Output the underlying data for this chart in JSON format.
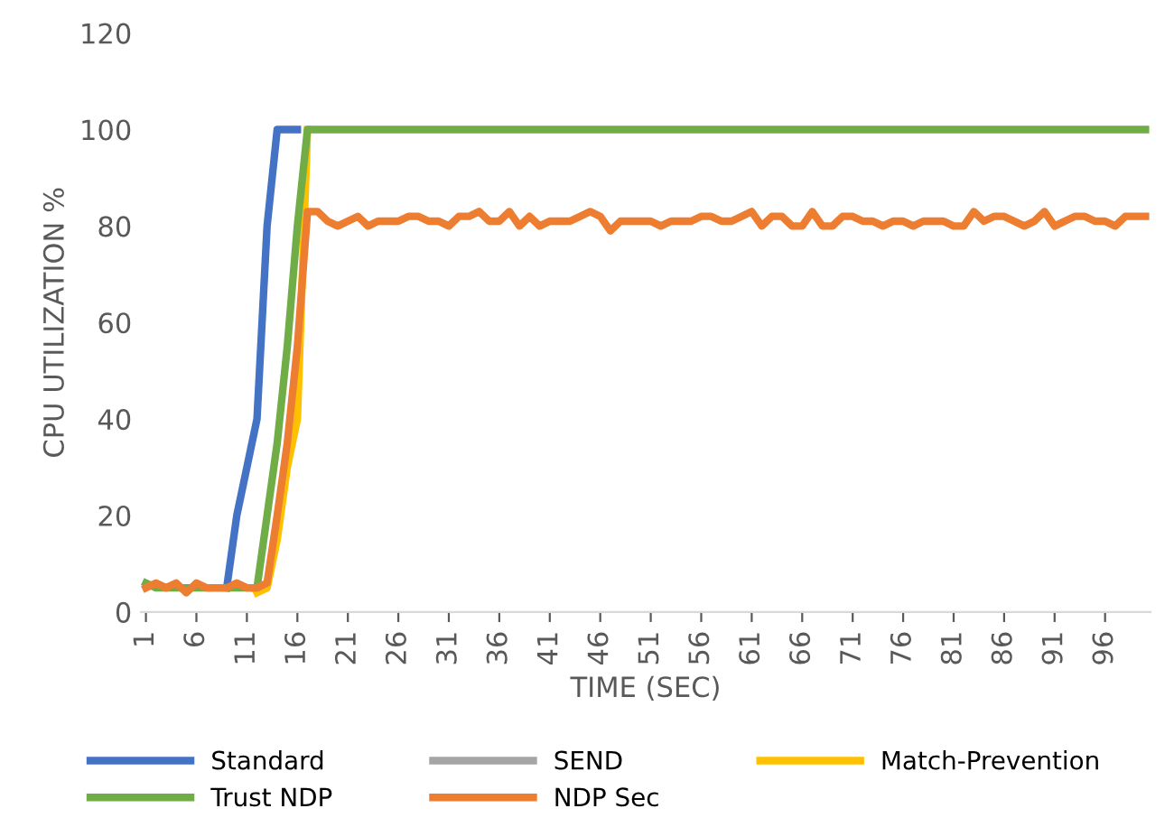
{
  "chart_data": {
    "type": "line",
    "xlabel": "TIME (SEC)",
    "ylabel": "CPU UTILIZATION %",
    "categories": [
      "1",
      null,
      null,
      null,
      null,
      "6",
      null,
      null,
      null,
      null,
      "11",
      null,
      null,
      null,
      null,
      "16",
      null,
      null,
      null,
      null,
      "21",
      null,
      null,
      null,
      null,
      "26",
      null,
      null,
      null,
      null,
      "31",
      null,
      null,
      null,
      null,
      "36",
      null,
      null,
      null,
      null,
      "41",
      null,
      null,
      null,
      null,
      "46",
      null,
      null,
      null,
      null,
      "51",
      null,
      null,
      null,
      null,
      "56",
      null,
      null,
      null,
      null,
      "61",
      null,
      null,
      null,
      null,
      "66",
      null,
      null,
      null,
      null,
      "71",
      null,
      null,
      null,
      null,
      "76",
      null,
      null,
      null,
      null,
      "81",
      null,
      null,
      null,
      null,
      "86",
      null,
      null,
      null,
      null,
      "91",
      null,
      null,
      null,
      null,
      "96",
      null,
      null,
      null,
      null
    ],
    "series": [
      {
        "name": "Standard",
        "color": "#4472c4",
        "values": [
          null,
          null,
          null,
          null,
          null,
          null,
          null,
          null,
          5,
          20,
          30,
          40,
          80,
          100,
          100,
          100,
          null,
          null,
          null,
          null,
          null,
          null,
          null,
          null,
          null,
          null,
          null,
          null,
          null,
          null,
          null,
          null,
          null,
          null,
          null,
          null,
          null,
          null,
          null,
          null,
          null,
          null,
          null,
          null,
          null,
          null,
          null,
          null,
          null,
          null,
          null,
          null,
          null,
          null,
          null,
          null,
          null,
          null,
          null,
          null,
          null,
          null,
          null,
          null,
          null,
          null,
          null,
          null,
          null,
          null,
          null,
          null,
          null,
          null,
          null,
          null,
          null,
          null,
          null,
          null,
          null,
          null,
          null,
          null,
          null,
          null,
          null,
          null,
          null,
          null,
          null,
          null,
          null,
          null,
          null,
          null,
          null,
          null,
          null,
          null
        ]
      },
      {
        "name": "SEND",
        "color": "#a5a5a5",
        "values": [
          null,
          null,
          null,
          null,
          null,
          null,
          null,
          null,
          null,
          null,
          null,
          null,
          null,
          null,
          null,
          null,
          null,
          null,
          null,
          null,
          null,
          null,
          null,
          null,
          null,
          null,
          null,
          null,
          null,
          null,
          null,
          null,
          null,
          null,
          null,
          null,
          null,
          null,
          null,
          null,
          null,
          null,
          null,
          null,
          null,
          null,
          null,
          null,
          null,
          null,
          null,
          null,
          null,
          null,
          null,
          null,
          null,
          null,
          null,
          null,
          null,
          null,
          null,
          null,
          null,
          null,
          null,
          null,
          null,
          null,
          null,
          null,
          null,
          null,
          null,
          null,
          null,
          null,
          null,
          null,
          null,
          null,
          null,
          null,
          null,
          null,
          null,
          null,
          null,
          null,
          null,
          null,
          null,
          null,
          null,
          null,
          null,
          null,
          null,
          null
        ]
      },
      {
        "name": "Match-Prevention",
        "color": "#ffc000",
        "values": [
          null,
          null,
          null,
          null,
          null,
          null,
          null,
          null,
          null,
          null,
          null,
          4,
          5,
          15,
          30,
          40,
          100,
          null,
          null,
          null,
          null,
          null,
          null,
          null,
          null,
          null,
          null,
          null,
          null,
          null,
          null,
          null,
          null,
          null,
          null,
          null,
          null,
          null,
          null,
          null,
          null,
          null,
          null,
          null,
          null,
          null,
          null,
          null,
          null,
          null,
          null,
          null,
          null,
          null,
          null,
          null,
          null,
          null,
          null,
          null,
          null,
          null,
          null,
          null,
          null,
          null,
          null,
          null,
          null,
          null,
          null,
          null,
          null,
          null,
          null,
          null,
          null,
          null,
          null,
          null,
          null,
          null,
          null,
          null,
          null,
          null,
          null,
          null,
          null,
          null,
          null,
          null,
          null,
          null,
          null,
          null,
          null,
          null,
          null,
          null
        ]
      },
      {
        "name": "Trust NDP",
        "color": "#70ad47",
        "values": [
          6,
          5,
          5,
          5,
          5,
          5,
          5,
          5,
          5,
          5,
          5,
          5,
          20,
          35,
          55,
          80,
          100,
          100,
          100,
          100,
          100,
          100,
          100,
          100,
          100,
          100,
          100,
          100,
          100,
          100,
          100,
          100,
          100,
          100,
          100,
          100,
          100,
          100,
          100,
          100,
          100,
          100,
          100,
          100,
          100,
          100,
          100,
          100,
          100,
          100,
          100,
          100,
          100,
          100,
          100,
          100,
          100,
          100,
          100,
          100,
          100,
          100,
          100,
          100,
          100,
          100,
          100,
          100,
          100,
          100,
          100,
          100,
          100,
          100,
          100,
          100,
          100,
          100,
          100,
          100,
          100,
          100,
          100,
          100,
          100,
          100,
          100,
          100,
          100,
          100,
          100,
          100,
          100,
          100,
          100,
          100,
          100,
          100,
          100,
          100
        ]
      },
      {
        "name": "NDP Sec",
        "color": "#ed7d31",
        "values": [
          5,
          6,
          5,
          6,
          4,
          6,
          5,
          5,
          5,
          6,
          5,
          5,
          6,
          20,
          35,
          55,
          83,
          83,
          81,
          80,
          81,
          82,
          80,
          81,
          81,
          81,
          82,
          82,
          81,
          81,
          80,
          82,
          82,
          83,
          81,
          81,
          83,
          80,
          82,
          80,
          81,
          81,
          81,
          82,
          83,
          82,
          79,
          81,
          81,
          81,
          81,
          80,
          81,
          81,
          81,
          82,
          82,
          81,
          81,
          82,
          83,
          80,
          82,
          82,
          80,
          80,
          83,
          80,
          80,
          82,
          82,
          81,
          81,
          80,
          81,
          81,
          80,
          81,
          81,
          81,
          80,
          80,
          83,
          81,
          82,
          82,
          81,
          80,
          81,
          83,
          80,
          81,
          82,
          82,
          81,
          81,
          80,
          82,
          82,
          82
        ]
      }
    ],
    "ylim": [
      0,
      120
    ],
    "yticks": [
      0,
      20,
      40,
      60,
      80,
      100,
      120
    ],
    "grid": false,
    "legend": "bottom",
    "marker": "none",
    "line_style": "solid"
  }
}
